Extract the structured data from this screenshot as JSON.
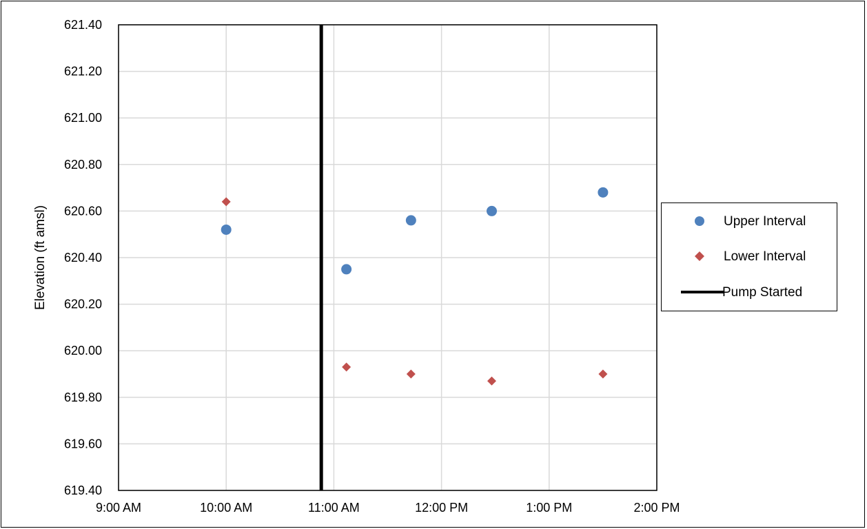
{
  "chart_data": {
    "type": "scatter",
    "xlabel": "",
    "ylabel": "Elevation (ft amsl)",
    "x_ticks": [
      "9:00 AM",
      "10:00 AM",
      "11:00 AM",
      "12:00 PM",
      "1:00 PM",
      "2:00 PM"
    ],
    "xlim": [
      "9:00 AM",
      "2:00 PM"
    ],
    "y_ticks": [
      "619.40",
      "619.60",
      "619.80",
      "620.00",
      "620.20",
      "620.40",
      "620.60",
      "620.80",
      "621.00",
      "621.20",
      "621.40"
    ],
    "ylim": [
      619.4,
      621.4
    ],
    "grid": true,
    "legend_position": "right",
    "series": [
      {
        "name": "Upper Interval",
        "marker": "circle",
        "color": "#4f81bd",
        "points": [
          {
            "x": "10:00 AM",
            "y": 620.52
          },
          {
            "x": "11:07 AM",
            "y": 620.35
          },
          {
            "x": "11:43 AM",
            "y": 620.56
          },
          {
            "x": "12:28 PM",
            "y": 620.6
          },
          {
            "x": "1:30 PM",
            "y": 620.68
          }
        ]
      },
      {
        "name": "Lower Interval",
        "marker": "diamond",
        "color": "#c0504d",
        "points": [
          {
            "x": "10:00 AM",
            "y": 620.64
          },
          {
            "x": "11:07 AM",
            "y": 619.93
          },
          {
            "x": "11:43 AM",
            "y": 619.9
          },
          {
            "x": "12:28 PM",
            "y": 619.87
          },
          {
            "x": "1:30 PM",
            "y": 619.9
          }
        ]
      }
    ],
    "vertical_line": {
      "name": "Pump Started",
      "x": "10:53 AM",
      "color": "#000000"
    }
  }
}
